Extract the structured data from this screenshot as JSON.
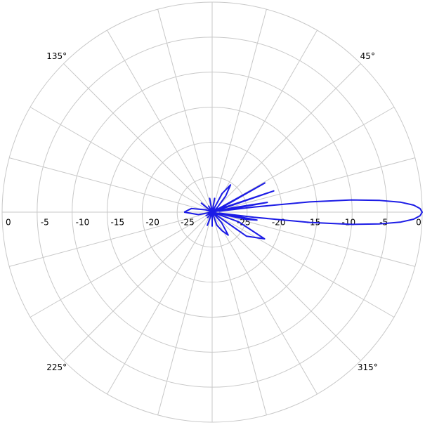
{
  "chart_data": {
    "type": "polar",
    "rlim": [
      -30,
      0
    ],
    "rticks": [
      0,
      -5,
      -10,
      -15,
      -20,
      -25
    ],
    "theta_grid": 15,
    "thetaticks": [
      {
        "value": 45,
        "label": "45°"
      },
      {
        "value": 135,
        "label": "135°"
      },
      {
        "value": 225,
        "label": "225°"
      },
      {
        "value": 315,
        "label": "315°"
      }
    ],
    "color": "#1c1ce6",
    "theta": [
      -180,
      -170,
      -160,
      -150,
      -140,
      -130,
      -120,
      -110,
      -100,
      -90,
      -80,
      -70,
      -62,
      -55,
      -48,
      -42,
      -35,
      -27,
      -20,
      -15,
      -12,
      -10,
      -8,
      -7,
      -6,
      -5,
      -4,
      -3,
      -2,
      -1,
      0,
      1,
      2,
      3,
      4,
      5,
      6,
      7,
      8,
      10,
      12,
      15,
      19,
      24,
      29,
      34,
      42,
      50,
      56,
      62,
      70,
      80,
      90,
      100,
      110,
      120,
      130,
      140,
      150,
      160,
      170,
      180
    ],
    "values": [
      -26,
      -28,
      -30,
      -29,
      -30,
      -29,
      -30,
      -28,
      -30,
      -28,
      -30,
      -28,
      -27,
      -26,
      -28,
      -30,
      -24,
      -21.6,
      -26,
      -30,
      -25,
      -23.5,
      -29,
      -24,
      -16,
      -10,
      -6,
      -3,
      -1.2,
      -0.3,
      0,
      -0.3,
      -1.2,
      -3,
      -6,
      -10,
      -16,
      -24,
      -29,
      -22,
      -27,
      -30,
      -20.7,
      -29,
      -21.4,
      -30,
      -29,
      -27,
      -25.3,
      -27,
      -30,
      -28,
      -30,
      -28,
      -30,
      -29,
      -30,
      -28,
      -30,
      -29,
      -27,
      -26
    ]
  }
}
